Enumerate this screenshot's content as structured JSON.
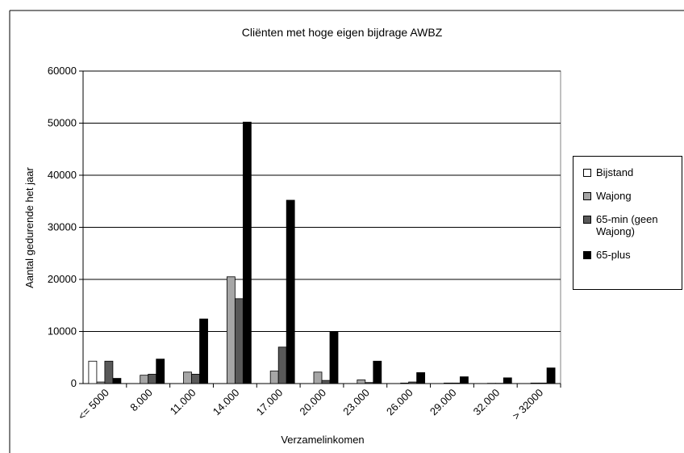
{
  "chart_data": {
    "type": "bar",
    "title": "Cliënten met hoge eigen bijdrage AWBZ",
    "x_label": "Verzamelinkomen",
    "y_label": "Aantal gedurende het jaar",
    "categories": [
      "<= 5000",
      "8.000",
      "11.000",
      "14.000",
      "17.000",
      "20.000",
      "23.000",
      "26.000",
      "29.000",
      "32.000",
      "> 32000"
    ],
    "series": [
      {
        "name": "Bijstand",
        "color": "#ffffff",
        "values": [
          4300,
          0,
          0,
          0,
          0,
          0,
          0,
          0,
          0,
          0,
          0
        ]
      },
      {
        "name": "Wajong",
        "color": "#a6a6a6",
        "values": [
          300,
          1600,
          2200,
          20500,
          2400,
          2200,
          700,
          100,
          100,
          50,
          100
        ]
      },
      {
        "name": "65-min (geen Wajong)",
        "color": "#595959",
        "values": [
          4300,
          1800,
          1800,
          16300,
          7000,
          600,
          200,
          300,
          100,
          50,
          100
        ]
      },
      {
        "name": "65-plus",
        "color": "#000000",
        "values": [
          1000,
          4700,
          12400,
          50200,
          35200,
          9900,
          4300,
          2100,
          1300,
          1100,
          3000
        ]
      }
    ],
    "ylim": [
      0,
      60000
    ],
    "yticks": [
      0,
      10000,
      20000,
      30000,
      40000,
      50000,
      60000
    ],
    "grid": true,
    "legend": "right"
  }
}
